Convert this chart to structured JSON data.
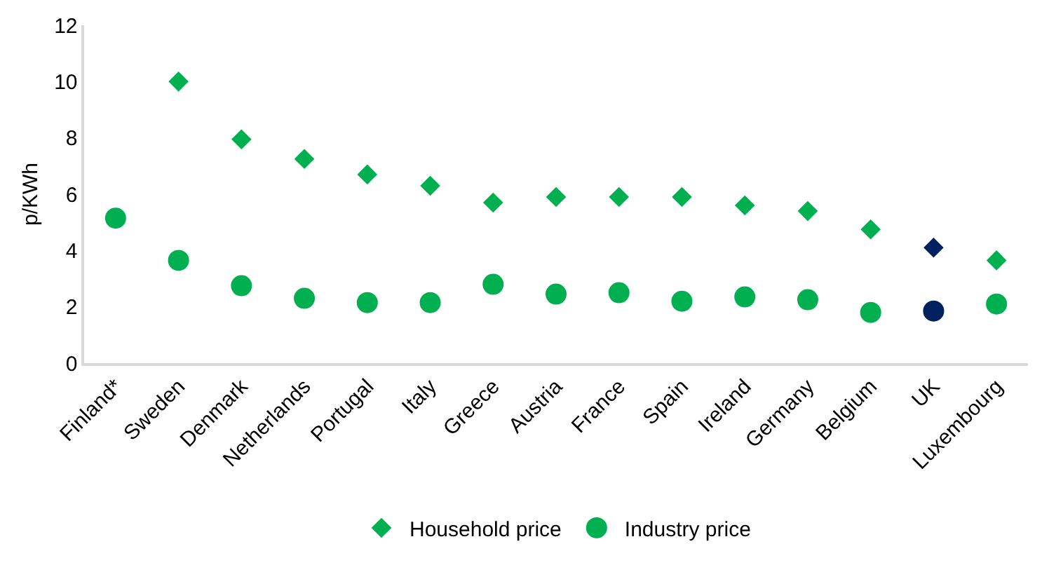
{
  "chart_data": {
    "type": "scatter",
    "ylabel": "p/KWh",
    "categories": [
      "Finland*",
      "Sweden",
      "Denmark",
      "Netherlands",
      "Portugal",
      "Italy",
      "Greece",
      "Austria",
      "France",
      "Spain",
      "Ireland",
      "Germany",
      "Belgium",
      "UK",
      "Luxembourg"
    ],
    "series": [
      {
        "name": "Household price",
        "color": "#00b050",
        "marker": "diamond",
        "colors": [
          null,
          null,
          null,
          null,
          null,
          null,
          null,
          null,
          null,
          null,
          null,
          null,
          null,
          "#002060",
          null
        ],
        "values": [
          null,
          10.0,
          7.95,
          7.25,
          6.7,
          6.3,
          5.7,
          5.9,
          5.9,
          5.9,
          5.6,
          5.4,
          4.75,
          4.1,
          3.65
        ]
      },
      {
        "name": "Industry price",
        "color": "#00b050",
        "marker": "circle",
        "colors": [
          null,
          null,
          null,
          null,
          null,
          null,
          null,
          null,
          null,
          null,
          null,
          null,
          null,
          "#002060",
          null
        ],
        "values": [
          5.15,
          3.65,
          2.75,
          2.3,
          2.15,
          2.15,
          2.8,
          2.45,
          2.5,
          2.2,
          2.35,
          2.25,
          1.8,
          1.85,
          2.1
        ]
      }
    ],
    "ylim": [
      0,
      12
    ],
    "yticks": [
      0,
      2,
      4,
      6,
      8,
      10,
      12
    ],
    "grid": false,
    "legend": "bottom"
  }
}
